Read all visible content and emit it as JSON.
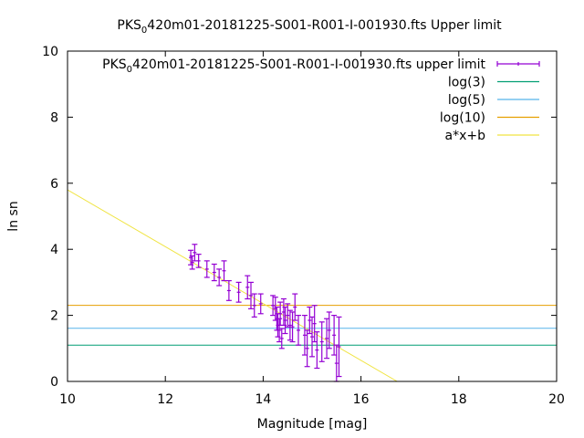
{
  "chart_data": {
    "type": "scatter",
    "title_prefix": "PKS",
    "title_sub": "0",
    "title_suffix": "420m01-20181225-S001-R001-I-001930.fts Upper limit",
    "xlabel": "Magnitude [mag]",
    "ylabel": "ln sn",
    "xlim": [
      10,
      20
    ],
    "ylim": [
      0,
      10
    ],
    "xticks": [
      10,
      12,
      14,
      16,
      18,
      20
    ],
    "yticks": [
      0,
      2,
      4,
      6,
      8,
      10
    ],
    "grid": false,
    "legend_position": "top-right",
    "legend": [
      {
        "prefix": "PKS",
        "sub": "0",
        "suffix": "420m01-20181225-S001-R001-I-001930.fts upper limit",
        "color": "#9400d3",
        "kind": "errorbar"
      },
      {
        "prefix": "log(3)",
        "sub": "",
        "suffix": "",
        "color": "#009e73",
        "kind": "line"
      },
      {
        "prefix": "log(5)",
        "sub": "",
        "suffix": "",
        "color": "#56b4e9",
        "kind": "line"
      },
      {
        "prefix": "log(10)",
        "sub": "",
        "suffix": "",
        "color": "#e69f00",
        "kind": "line"
      },
      {
        "prefix": "a*x+b",
        "sub": "",
        "suffix": "",
        "color": "#f0e442",
        "kind": "line"
      }
    ],
    "hlines": [
      {
        "y": 1.0986,
        "color": "#009e73"
      },
      {
        "y": 1.6094,
        "color": "#56b4e9"
      },
      {
        "y": 2.3026,
        "color": "#e69f00"
      }
    ],
    "fit_line": {
      "x": [
        10.0,
        16.74
      ],
      "y": [
        5.8,
        0.0
      ],
      "color": "#f0e442"
    },
    "series": [
      {
        "color": "#9400d3",
        "points": [
          {
            "x": 12.52,
            "y": 3.75,
            "err": 0.22
          },
          {
            "x": 12.55,
            "y": 3.6,
            "err": 0.2
          },
          {
            "x": 12.6,
            "y": 3.9,
            "err": 0.25
          },
          {
            "x": 12.68,
            "y": 3.65,
            "err": 0.2
          },
          {
            "x": 12.85,
            "y": 3.4,
            "err": 0.25
          },
          {
            "x": 13.0,
            "y": 3.3,
            "err": 0.25
          },
          {
            "x": 13.1,
            "y": 3.15,
            "err": 0.25
          },
          {
            "x": 13.2,
            "y": 3.35,
            "err": 0.3
          },
          {
            "x": 13.3,
            "y": 2.75,
            "err": 0.3
          },
          {
            "x": 13.5,
            "y": 2.7,
            "err": 0.3
          },
          {
            "x": 13.68,
            "y": 2.85,
            "err": 0.35
          },
          {
            "x": 13.75,
            "y": 2.6,
            "err": 0.4
          },
          {
            "x": 13.82,
            "y": 2.3,
            "err": 0.35
          },
          {
            "x": 13.95,
            "y": 2.35,
            "err": 0.3
          },
          {
            "x": 14.2,
            "y": 2.3,
            "err": 0.3
          },
          {
            "x": 14.25,
            "y": 2.2,
            "err": 0.35
          },
          {
            "x": 14.28,
            "y": 1.9,
            "err": 0.35
          },
          {
            "x": 14.3,
            "y": 1.7,
            "err": 0.35
          },
          {
            "x": 14.33,
            "y": 1.55,
            "err": 0.35
          },
          {
            "x": 14.35,
            "y": 2.05,
            "err": 0.35
          },
          {
            "x": 14.38,
            "y": 1.3,
            "err": 0.3
          },
          {
            "x": 14.42,
            "y": 2.1,
            "err": 0.4
          },
          {
            "x": 14.45,
            "y": 1.85,
            "err": 0.4
          },
          {
            "x": 14.5,
            "y": 2.0,
            "err": 0.35
          },
          {
            "x": 14.55,
            "y": 1.7,
            "err": 0.45
          },
          {
            "x": 14.6,
            "y": 1.65,
            "err": 0.45
          },
          {
            "x": 14.65,
            "y": 2.25,
            "err": 0.4
          },
          {
            "x": 14.72,
            "y": 1.55,
            "err": 0.45
          },
          {
            "x": 14.85,
            "y": 1.4,
            "err": 0.6
          },
          {
            "x": 14.9,
            "y": 1.0,
            "err": 0.55
          },
          {
            "x": 14.95,
            "y": 1.85,
            "err": 0.4
          },
          {
            "x": 15.0,
            "y": 1.35,
            "err": 0.6
          },
          {
            "x": 15.05,
            "y": 1.75,
            "err": 0.55
          },
          {
            "x": 15.1,
            "y": 0.95,
            "err": 0.55
          },
          {
            "x": 15.2,
            "y": 1.2,
            "err": 0.6
          },
          {
            "x": 15.3,
            "y": 1.3,
            "err": 0.6
          },
          {
            "x": 15.35,
            "y": 1.55,
            "err": 0.55
          },
          {
            "x": 15.45,
            "y": 1.4,
            "err": 0.6
          },
          {
            "x": 15.5,
            "y": 0.55,
            "err": 0.55
          },
          {
            "x": 15.55,
            "y": 1.05,
            "err": 0.9
          }
        ]
      }
    ]
  }
}
